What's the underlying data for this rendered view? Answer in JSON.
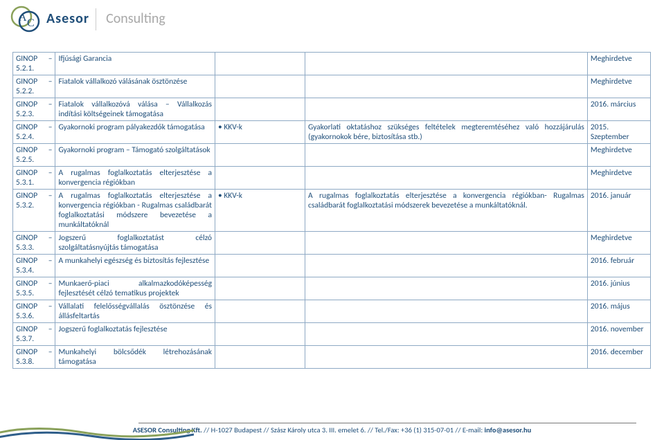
{
  "brand": {
    "name": "Asesor",
    "sub": "Consulting"
  },
  "rows": [
    {
      "code": "GINOP – 5.2.1.",
      "title": "Ifjúsági Garancia",
      "bul": "",
      "desc": "",
      "date": "Meghirdetve"
    },
    {
      "code": "GINOP – 5.2.2.",
      "title": "Fiatalok vállalkozó válásának ösztönzése",
      "bul": "",
      "desc": "",
      "date": "Meghirdetve"
    },
    {
      "code": "GINOP – 5.2.3.",
      "title": "Fiatalok vállalkozóvá válása – Vállalkozás indítási költségeinek támogatása",
      "bul": "",
      "desc": "",
      "date": "2016. március"
    },
    {
      "code": "GINOP – 5.2.4.",
      "title": "Gyakornoki program pályakezdők támogatása",
      "bul": "KKV-k",
      "desc": "Gyakorlati oktatáshoz szükséges feltételek megteremtéséhez való hozzájárulás (gyakornokok bére, biztosítása stb.)",
      "date": "2015. Szeptember"
    },
    {
      "code": "GINOP – 5.2.5.",
      "title": "Gyakornoki program – Támogató szolgáltatások",
      "bul": "",
      "desc": "",
      "date": "Meghirdetve"
    },
    {
      "code": "GINOP – 5.3.1.",
      "title": "A rugalmas foglalkoztatás elterjesztése a konvergencia régiókban",
      "bul": "",
      "desc": "",
      "date": "Meghirdetve"
    },
    {
      "code": "GINOP – 5.3.2.",
      "title": "A rugalmas foglalkoztatás elterjesztése a konvergencia régiókban - Rugalmas családbarát foglalkoztatási módszere bevezetése a munkáltatóknál",
      "bul": "KKV-k",
      "desc": "A rugalmas foglalkoztatás elterjesztése a konvergencia régiókban- Rugalmas családbarát foglalkoztatási módszerek bevezetése a munkáltatóknál.",
      "date": "2016. január"
    },
    {
      "code": "GINOP – 5.3.3.",
      "title": "Jogszerű foglalkoztatást célzó szolgáltatásnyújtás támogatása",
      "bul": "",
      "desc": "",
      "date": "Meghirdetve"
    },
    {
      "code": "GINOP – 5.3.4.",
      "title": "A munkahelyi egészség és biztosítás fejlesztése",
      "bul": "",
      "desc": "",
      "date": "2016. február"
    },
    {
      "code": "GINOP – 5.3.5.",
      "title": "Munkaerő-piaci alkalmazkodóképesség fejlesztését célzó tematikus projektek",
      "bul": "",
      "desc": "",
      "date": "2016. június"
    },
    {
      "code": "GINOP – 5.3.6.",
      "title": "Vállalati felelősségvállalás ösztönzése és állásfeltartás",
      "bul": "",
      "desc": "",
      "date": "2016. május"
    },
    {
      "code": "GINOP – 5.3.7.",
      "title": "Jogszerű foglalkoztatás fejlesztése",
      "bul": "",
      "desc": "",
      "date": "2016. november"
    },
    {
      "code": "GINOP – 5.3.8.",
      "title": "Munkahelyi bölcsődék létrehozásának támogatása",
      "bul": "",
      "desc": "",
      "date": "2016. december"
    }
  ],
  "footer": {
    "company": "ASESOR Consulting Kft.",
    "sep": " // ",
    "addr": "H-1027 Budapest // Szász Károly utca 3. III. emelet 6. // Tel./Fax: +36 (1) 315-07-01 // E-mail: ",
    "email": "info@asesor.hu"
  }
}
